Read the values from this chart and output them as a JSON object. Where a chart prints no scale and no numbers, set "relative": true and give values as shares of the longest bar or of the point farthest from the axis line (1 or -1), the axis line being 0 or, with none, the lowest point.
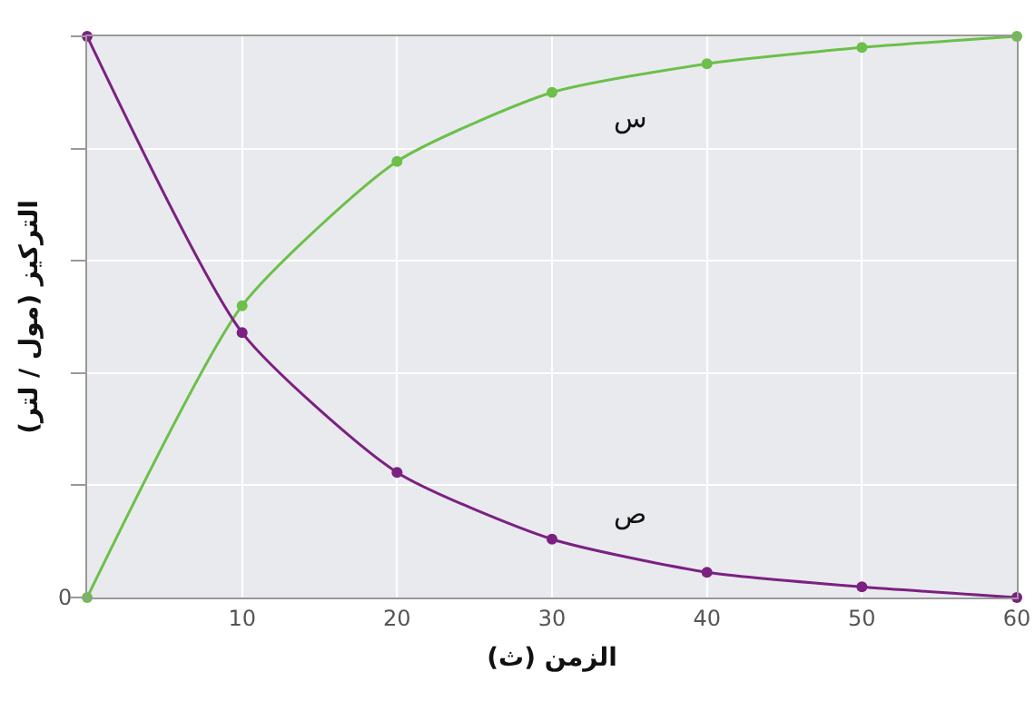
{
  "chart_data": {
    "type": "line",
    "relative": true,
    "xlabel": "الزمن (ث)",
    "ylabel": "التركيز (مول / لتر)",
    "x": [
      0,
      10,
      20,
      30,
      40,
      50,
      60
    ],
    "xlim": [
      0,
      60
    ],
    "xticks": [
      10,
      20,
      30,
      40,
      50,
      60
    ],
    "series": [
      {
        "name": "س",
        "color": "#6cc04a",
        "values": [
          0,
          0.52,
          0.777,
          0.9,
          0.951,
          0.98,
          1
        ]
      },
      {
        "name": "ص",
        "color": "#7b2182",
        "values": [
          1,
          0.472,
          0.223,
          0.104,
          0.045,
          0.019,
          0
        ]
      }
    ],
    "annotations": [
      {
        "text": "0",
        "x": 0,
        "y": 0
      }
    ],
    "grid": true,
    "legend": false,
    "marker": "circle",
    "line_style": "solid"
  }
}
